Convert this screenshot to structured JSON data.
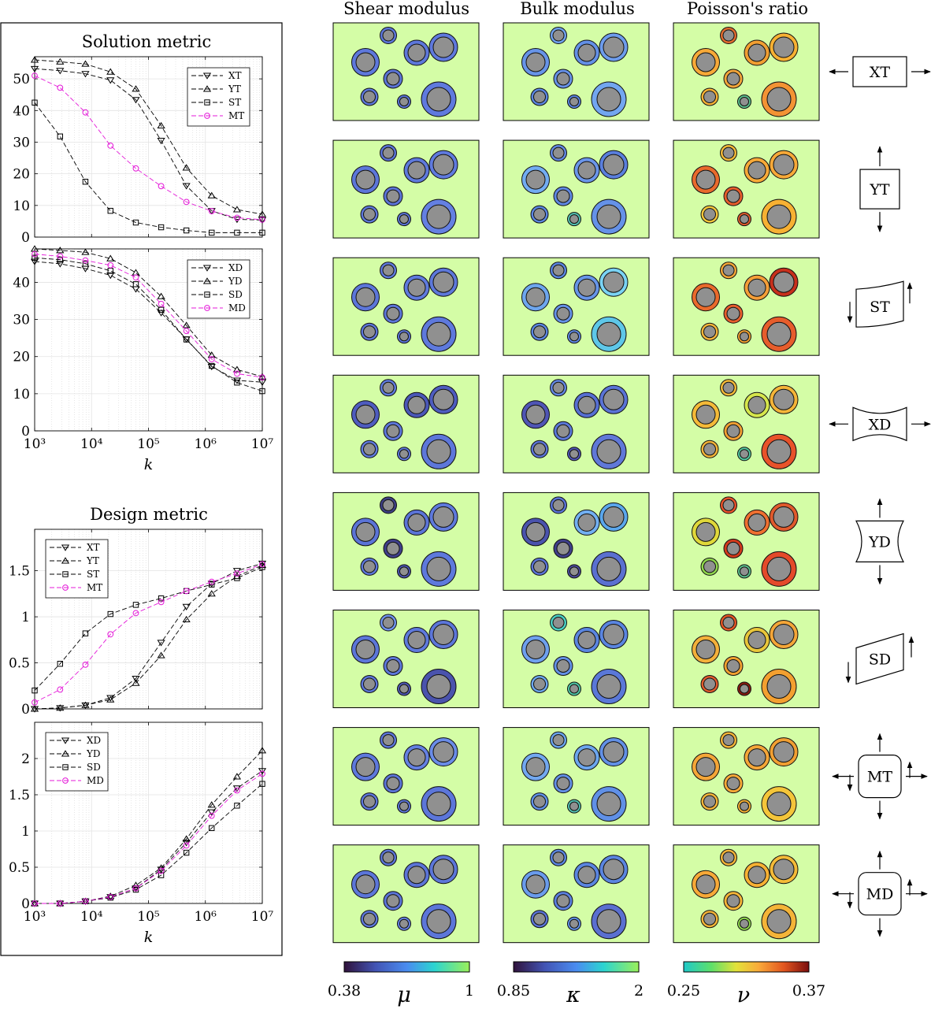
{
  "panel_titles": {
    "solution": "Solution metric",
    "design": "Design metric"
  },
  "columns": [
    "Shear modulus",
    "Bulk modulus",
    "Poisson's ratio"
  ],
  "rows": [
    "XT",
    "YT",
    "ST",
    "XD",
    "YD",
    "SD",
    "MT",
    "MD"
  ],
  "colorbars": [
    {
      "min": "0.38",
      "max": "1",
      "symbol": "μ",
      "scheme": "mu"
    },
    {
      "min": "0.85",
      "max": "2",
      "symbol": "κ",
      "scheme": "kappa"
    },
    {
      "min": "0.25",
      "max": "0.37",
      "symbol": "ν",
      "scheme": "nu"
    }
  ],
  "colors": {
    "matrix": "#d4fda6",
    "inclusion": "#909090",
    "grid": "#e3e3e3",
    "magenta": "#e41ad8",
    "black": "#000000"
  },
  "chart_data": [
    {
      "type": "line",
      "title": "Solution metric",
      "xlabel": "",
      "xscale": "log",
      "x": [
        1000,
        2800,
        7800,
        21500,
        60000,
        167000,
        464000,
        1290000,
        3600000,
        10000000
      ],
      "xticks": [
        "10³",
        "10⁴",
        "10⁵",
        "10⁶",
        "10⁷"
      ],
      "yticks": [
        "0",
        "10",
        "20",
        "30",
        "40",
        "50"
      ],
      "ylim": [
        0,
        57
      ],
      "grid": true,
      "legend": "top-right",
      "series": [
        {
          "name": "XT",
          "marker": "triangle-down",
          "color": "#000000",
          "values": [
            53.2,
            52.6,
            51.6,
            49.6,
            43.4,
            30.5,
            16.2,
            8.3,
            5.6,
            5.4
          ]
        },
        {
          "name": "YT",
          "marker": "triangle-up",
          "color": "#000000",
          "values": [
            56.0,
            55.4,
            54.7,
            52.2,
            46.8,
            35.2,
            21.9,
            13.1,
            8.7,
            7.2
          ]
        },
        {
          "name": "ST",
          "marker": "square",
          "color": "#000000",
          "values": [
            42.5,
            31.8,
            17.5,
            8.3,
            4.6,
            3.1,
            2.1,
            1.4,
            1.4,
            1.4
          ]
        },
        {
          "name": "MT",
          "marker": "circle",
          "color": "#e41ad8",
          "values": [
            51.0,
            47.2,
            39.4,
            28.9,
            21.7,
            16.1,
            11.1,
            8.2,
            6.1,
            5.5
          ]
        }
      ]
    },
    {
      "type": "line",
      "title": "",
      "xlabel": "k",
      "xscale": "log",
      "x": [
        1000,
        2800,
        7800,
        21500,
        60000,
        167000,
        464000,
        1290000,
        3600000,
        10000000
      ],
      "xticks": [
        "10³",
        "10⁴",
        "10⁵",
        "10⁶",
        "10⁷"
      ],
      "yticks": [
        "0",
        "10",
        "20",
        "30",
        "40"
      ],
      "ylim": [
        0,
        49
      ],
      "grid": true,
      "legend": "top-right",
      "series": [
        {
          "name": "XD",
          "marker": "triangle-down",
          "color": "#000000",
          "values": [
            45.6,
            45.0,
            43.7,
            41.9,
            38.2,
            31.8,
            24.7,
            17.3,
            13.6,
            13.1
          ]
        },
        {
          "name": "YD",
          "marker": "triangle-up",
          "color": "#000000",
          "values": [
            49.0,
            48.6,
            48.1,
            46.4,
            42.6,
            36.2,
            28.4,
            20.4,
            16.5,
            14.6
          ]
        },
        {
          "name": "SD",
          "marker": "square",
          "color": "#000000",
          "values": [
            46.6,
            46.1,
            45.0,
            43.1,
            39.5,
            32.6,
            24.6,
            17.5,
            13.0,
            10.7
          ]
        },
        {
          "name": "MD",
          "marker": "circle",
          "color": "#e41ad8",
          "values": [
            47.6,
            47.0,
            45.9,
            44.6,
            41.3,
            34.2,
            26.9,
            19.3,
            15.4,
            14.4
          ]
        }
      ]
    },
    {
      "type": "line",
      "title": "Design metric",
      "xlabel": "",
      "xscale": "log",
      "x": [
        1000,
        2800,
        7800,
        21500,
        60000,
        167000,
        464000,
        1290000,
        3600000,
        10000000
      ],
      "xticks": [
        "10³",
        "10⁴",
        "10⁵",
        "10⁶",
        "10⁷"
      ],
      "yticks": [
        "0",
        "0.5",
        "1",
        "1.5"
      ],
      "ylim": [
        0,
        1.95
      ],
      "grid": true,
      "legend": "top-left",
      "series": [
        {
          "name": "XT",
          "marker": "triangle-down",
          "color": "#000000",
          "values": [
            0.0,
            0.01,
            0.04,
            0.12,
            0.33,
            0.72,
            1.11,
            1.36,
            1.5,
            1.58
          ]
        },
        {
          "name": "YT",
          "marker": "triangle-up",
          "color": "#000000",
          "values": [
            0.0,
            0.01,
            0.04,
            0.1,
            0.28,
            0.58,
            0.97,
            1.25,
            1.44,
            1.56
          ]
        },
        {
          "name": "ST",
          "marker": "square",
          "color": "#000000",
          "values": [
            0.2,
            0.49,
            0.82,
            1.03,
            1.13,
            1.2,
            1.28,
            1.35,
            1.42,
            1.54
          ]
        },
        {
          "name": "MT",
          "marker": "circle",
          "color": "#e41ad8",
          "values": [
            0.07,
            0.21,
            0.48,
            0.81,
            1.04,
            1.16,
            1.28,
            1.38,
            1.47,
            1.57
          ]
        }
      ]
    },
    {
      "type": "line",
      "title": "",
      "xlabel": "k",
      "xscale": "log",
      "x": [
        1000,
        2800,
        7800,
        21500,
        60000,
        167000,
        464000,
        1290000,
        3600000,
        10000000
      ],
      "xticks": [
        "10³",
        "10⁴",
        "10⁵",
        "10⁶",
        "10⁷"
      ],
      "yticks": [
        "0",
        "0.5",
        "1",
        "1.5",
        "2"
      ],
      "ylim": [
        0,
        2.5
      ],
      "grid": true,
      "legend": "top-left",
      "series": [
        {
          "name": "XD",
          "marker": "triangle-down",
          "color": "#000000",
          "values": [
            0.0,
            0.0,
            0.03,
            0.09,
            0.21,
            0.47,
            0.84,
            1.26,
            1.59,
            1.83
          ]
        },
        {
          "name": "YD",
          "marker": "triangle-up",
          "color": "#000000",
          "values": [
            0.0,
            0.0,
            0.03,
            0.1,
            0.25,
            0.49,
            0.89,
            1.36,
            1.75,
            2.11
          ]
        },
        {
          "name": "SD",
          "marker": "square",
          "color": "#000000",
          "values": [
            0.0,
            0.0,
            0.03,
            0.08,
            0.19,
            0.39,
            0.7,
            1.04,
            1.35,
            1.65
          ]
        },
        {
          "name": "MD",
          "marker": "circle",
          "color": "#e41ad8",
          "values": [
            0.0,
            0.0,
            0.03,
            0.09,
            0.21,
            0.45,
            0.8,
            1.21,
            1.56,
            1.79
          ]
        }
      ]
    }
  ],
  "inclusions": [
    {
      "cx": 70,
      "cy": 16,
      "r": 10.5,
      "ri": 7
    },
    {
      "cx": 140,
      "cy": 31,
      "r": 18,
      "ri": 13
    },
    {
      "cx": 106,
      "cy": 38,
      "r": 16,
      "ri": 11
    },
    {
      "cx": 41,
      "cy": 50,
      "r": 17.5,
      "ri": 12
    },
    {
      "cx": 76,
      "cy": 71,
      "r": 12,
      "ri": 8
    },
    {
      "cx": 46,
      "cy": 94,
      "r": 11,
      "ri": 7.5
    },
    {
      "cx": 90,
      "cy": 100,
      "r": 8.5,
      "ri": 5.5
    },
    {
      "cx": 134,
      "cy": 97,
      "r": 22,
      "ri": 15
    }
  ],
  "ring_colors": {
    "shear": [
      [
        "#5c76d9",
        "#5f79dd",
        "#5d77da",
        "#5e78dc",
        "#5b74d7",
        "#5c76d9",
        "#5a73d6",
        "#5f7ade"
      ],
      [
        "#5a73d6",
        "#5f7ade",
        "#5e79dc",
        "#5c76d9",
        "#5b74d7",
        "#5c76d9",
        "#5a73d6",
        "#6480e2"
      ],
      [
        "#5e79dc",
        "#5d78da",
        "#5f7ade",
        "#5c76d9",
        "#5c76d9",
        "#5b74d7",
        "#5b74d7",
        "#5e79dc"
      ],
      [
        "#5f7ade",
        "#4e5cbf",
        "#4a57b7",
        "#4e5cbf",
        "#5d77da",
        "#5f7ade",
        "#5d77da",
        "#5d77da"
      ],
      [
        "#3d3f83",
        "#5e79dc",
        "#5b74d7",
        "#5b74d7",
        "#3f3f8a",
        "#5c76d9",
        "#4a53ad",
        "#5e79dc"
      ],
      [
        "#6f92eb",
        "#5c76d9",
        "#5e79dc",
        "#5c76d9",
        "#5d77da",
        "#5c76d9",
        "#4e57b5",
        "#4a53ad"
      ],
      [
        "#5c76d9",
        "#6a8ce8",
        "#6480e2",
        "#5e79dc",
        "#5b74d7",
        "#5c76d9",
        "#5c76d9",
        "#5c76d9"
      ],
      [
        "#5a73d6",
        "#5c76d9",
        "#5b74d7",
        "#5c76d9",
        "#5b74d7",
        "#5c76d9",
        "#6480e2",
        "#5c76d9"
      ]
    ],
    "bulk": [
      [
        "#6fa1ee",
        "#6d9cec",
        "#6390e6",
        "#6794e8",
        "#6792e8",
        "#5a85e0",
        "#5a85e0",
        "#72a6f0"
      ],
      [
        "#6288e2",
        "#5a7fdd",
        "#6a95ea",
        "#72acf2",
        "#5f88e3",
        "#5a85e0",
        "#52c1b1",
        "#6592e8"
      ],
      [
        "#5a85e0",
        "#7ad3f4",
        "#6795e8",
        "#6da6ee",
        "#6592e8",
        "#5a85e0",
        "#5f88e3",
        "#5ec7e8"
      ],
      [
        "#6286e2",
        "#5a73d6",
        "#566fd2",
        "#4f55b5",
        "#5a78d8",
        "#5a73d6",
        "#4f55b5",
        "#6078d8"
      ],
      [
        "#5a73d6",
        "#5aa7ec",
        "#72b0f2",
        "#4a53ad",
        "#3f3f8a",
        "#5a73d6",
        "#4a4a9a",
        "#5a70d0"
      ],
      [
        "#49d0c2",
        "#5a85e0",
        "#5a85e0",
        "#6ea0ee",
        "#6390e6",
        "#6ba6ee",
        "#4ec7a6",
        "#5a78d8"
      ],
      [
        "#6aa4ee",
        "#6290e6",
        "#6ca6ee",
        "#72a8f0",
        "#6390e6",
        "#6090e6",
        "#52c1b1",
        "#6090e6"
      ],
      [
        "#5a85e0",
        "#5a85e0",
        "#5a85e0",
        "#6a9cec",
        "#5a7fdd",
        "#5a73d6",
        "#6090e6",
        "#5a6fd0"
      ]
    ],
    "nu": [
      [
        "#e06b2e",
        "#f7b133",
        "#f19f32",
        "#f7a938",
        "#f2a53a",
        "#f7b133",
        "#5abf8c",
        "#f39334"
      ],
      [
        "#f4ba38",
        "#f7a938",
        "#f7a938",
        "#e96a2c",
        "#e65d2c",
        "#f4c53a",
        "#e05a2c",
        "#f7b133"
      ],
      [
        "#f4a638",
        "#c7301c",
        "#f49e38",
        "#e96a2c",
        "#e65d2c",
        "#f4b438",
        "#f0a030",
        "#e65d2c"
      ],
      [
        "#f4ba38",
        "#f4b438",
        "#d6e64c",
        "#f4ba38",
        "#f19f32",
        "#f4b438",
        "#52c8a0",
        "#e8522a"
      ],
      [
        "#e8522a",
        "#e05a2c",
        "#ef7030",
        "#e0d83a",
        "#d23a1c",
        "#8fd84c",
        "#5abf8c",
        "#e44a2a"
      ],
      [
        "#e25524",
        "#f4a638",
        "#e8c63a",
        "#f3b03a",
        "#f0a030",
        "#e05a2c",
        "#8a1a10",
        "#f3a030"
      ],
      [
        "#f4b438",
        "#f19f32",
        "#f4a638",
        "#f4a638",
        "#f7a938",
        "#f4b438",
        "#f7b133",
        "#f4c53a"
      ],
      [
        "#f4b438",
        "#f4ba38",
        "#f7b133",
        "#f7a938",
        "#f4b438",
        "#f4b438",
        "#8fd84c",
        "#f4b438"
      ]
    ]
  }
}
